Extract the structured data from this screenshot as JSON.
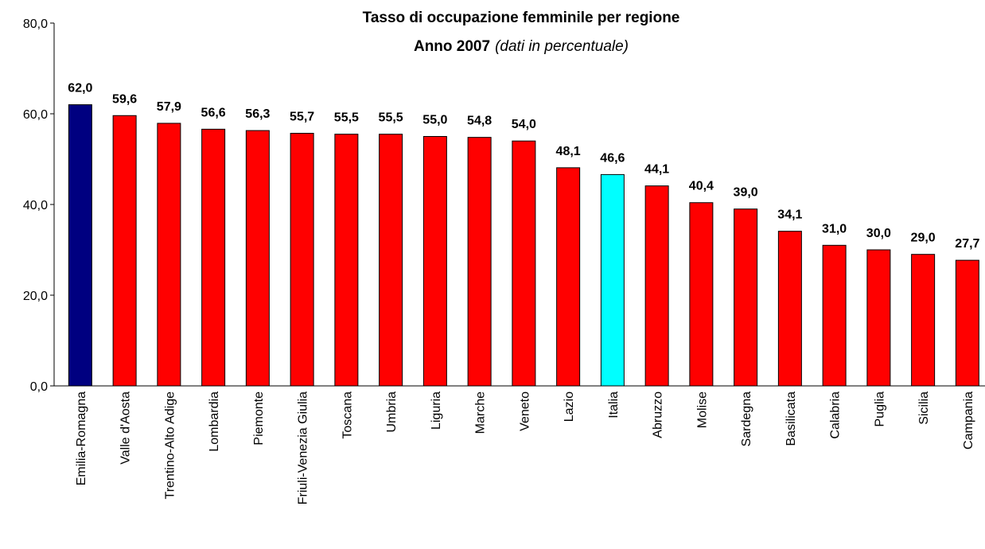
{
  "chart_data": {
    "type": "bar",
    "title": "Tasso di occupazione femminile per regione",
    "subtitle": "Anno 2007",
    "subtitle_note": "(dati in percentuale)",
    "categories": [
      "Emilia-Romagna",
      "Valle d'Aosta",
      "Trentino-Alto Adige",
      "Lombardia",
      "Piemonte",
      "Friuli-Venezia Giulia",
      "Toscana",
      "Umbria",
      "Liguria",
      "Marche",
      "Veneto",
      "Lazio",
      "Italia",
      "Abruzzo",
      "Molise",
      "Sardegna",
      "Basilicata",
      "Calabria",
      "Puglia",
      "Sicilia",
      "Campania"
    ],
    "values": [
      62.0,
      59.6,
      57.9,
      56.6,
      56.3,
      55.7,
      55.5,
      55.5,
      55.0,
      54.8,
      54.0,
      48.1,
      46.6,
      44.1,
      40.4,
      39.0,
      34.1,
      31.0,
      30.0,
      29.0,
      27.7
    ],
    "value_labels": [
      "62,0",
      "59,6",
      "57,9",
      "56,6",
      "56,3",
      "55,7",
      "55,5",
      "55,5",
      "55,0",
      "54,8",
      "54,0",
      "48,1",
      "46,6",
      "44,1",
      "40,4",
      "39,0",
      "34,1",
      "31,0",
      "30,0",
      "29,0",
      "27,7"
    ],
    "colors": [
      "#000080",
      "#ff0000",
      "#ff0000",
      "#ff0000",
      "#ff0000",
      "#ff0000",
      "#ff0000",
      "#ff0000",
      "#ff0000",
      "#ff0000",
      "#ff0000",
      "#ff0000",
      "#00ffff",
      "#ff0000",
      "#ff0000",
      "#ff0000",
      "#ff0000",
      "#ff0000",
      "#ff0000",
      "#ff0000",
      "#ff0000"
    ],
    "ylim": [
      0,
      80
    ],
    "yticks": [
      {
        "value": 0,
        "label": "0,0"
      },
      {
        "value": 20,
        "label": "20,0"
      },
      {
        "value": 40,
        "label": "40,0"
      },
      {
        "value": 60,
        "label": "60,0"
      },
      {
        "value": 80,
        "label": "80,0"
      }
    ],
    "grid": false
  }
}
